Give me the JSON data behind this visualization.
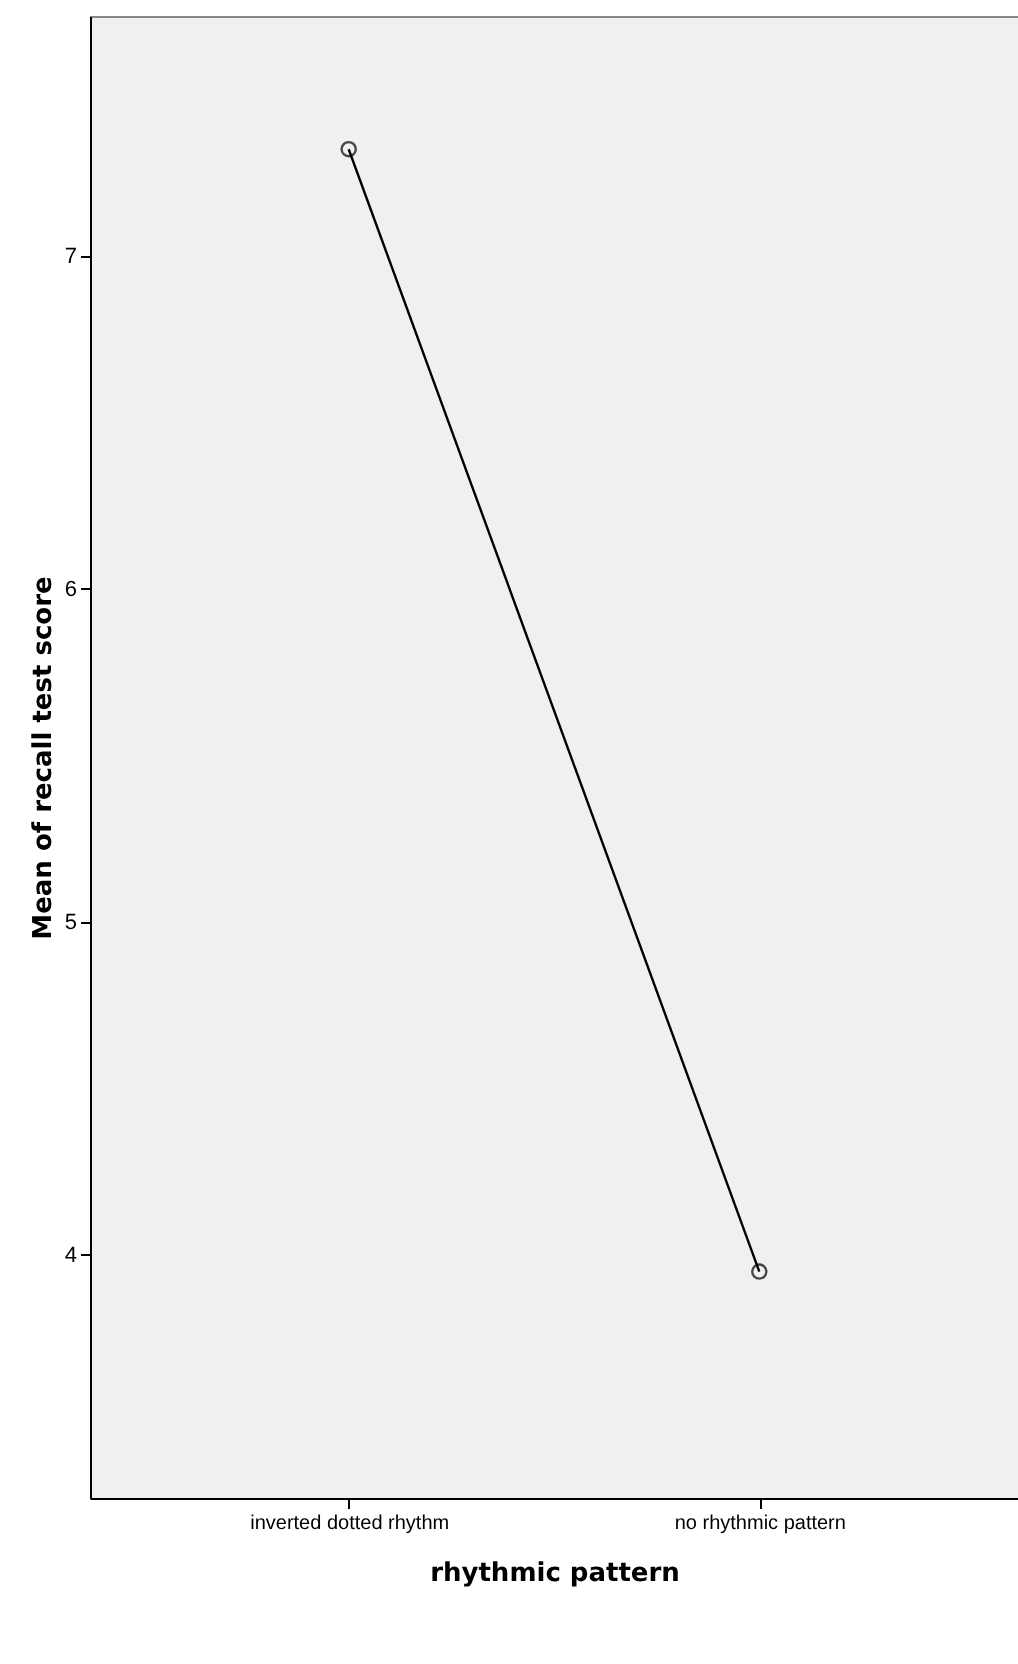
{
  "chart_data": {
    "type": "line",
    "xlabel": "rhythmic pattern",
    "ylabel": "Mean of recall test score",
    "categories": [
      "inverted dotted rhythm",
      "no rhythmic pattern"
    ],
    "series": [
      {
        "color": "#000000",
        "values": [
          7.32,
          3.95
        ]
      }
    ],
    "ylim": [
      3.27,
      7.72
    ],
    "yticks": [
      4,
      5,
      6,
      7
    ],
    "grid": false,
    "marker": "circle",
    "line_style": "solid"
  }
}
